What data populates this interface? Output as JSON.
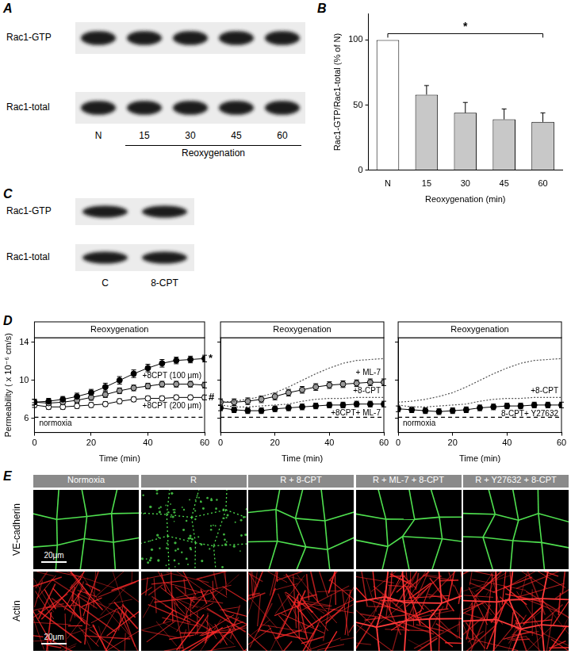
{
  "panels": {
    "A": {
      "letter": "A",
      "rows": [
        "Rac1-GTP",
        "Rac1-total"
      ],
      "lanes": [
        "N",
        "15",
        "30",
        "45",
        "60"
      ],
      "lane_group": "Reoxygenation"
    },
    "B": {
      "letter": "B"
    },
    "C": {
      "letter": "C",
      "rows": [
        "Rac1-GTP",
        "Rac1-total"
      ],
      "lanes": [
        "C",
        "8-CPT"
      ]
    },
    "D": {
      "letter": "D"
    },
    "E": {
      "letter": "E",
      "columns": [
        "Normoxia",
        "R",
        "R + 8-CPT",
        "R + ML-7 + 8-CPT",
        "R + Y27632 + 8-CPT"
      ],
      "rows": [
        "VE-cadherin",
        "Actin"
      ],
      "scale_bar": "20μm"
    }
  },
  "chart_data": [
    {
      "type": "bar",
      "categories": [
        "N",
        "15",
        "30",
        "45",
        "60"
      ],
      "values": [
        100,
        58,
        44,
        39,
        37
      ],
      "errors": [
        0,
        7,
        8,
        8,
        7
      ],
      "colors": [
        "#ffffff",
        "#c8c8c8",
        "#c8c8c8",
        "#c8c8c8",
        "#c8c8c8"
      ],
      "ylabel": "Rac1-GTP/Rac1-total (% of N)",
      "xlabel": "Reoxygenation (min)",
      "ylim": [
        0,
        120
      ],
      "yticks": [
        0,
        50,
        100
      ],
      "grid": false,
      "annotations": [
        {
          "from": "N",
          "to": "60",
          "text": "*"
        }
      ]
    },
    {
      "type": "line",
      "title": "Reoxygenation",
      "ylabel": "Permeability ( x 10⁻⁶ cm/s)",
      "xlabel": "Time (min)",
      "x": [
        0,
        5,
        10,
        15,
        20,
        25,
        30,
        35,
        40,
        45,
        50,
        55,
        60
      ],
      "xlim": [
        0,
        60
      ],
      "xticks": [
        0,
        20,
        40,
        60
      ],
      "ylim": [
        4.5,
        14.5
      ],
      "yticks": [
        6,
        10,
        14
      ],
      "grid": false,
      "series": [
        {
          "name": "normoxia",
          "color": "#000000",
          "marker": "none",
          "line_style": "dashed",
          "values": [
            6.1,
            6.1,
            6.1,
            6.1,
            6.1,
            6.1,
            6.1,
            6.1,
            6.1,
            6.1,
            6.1,
            6.1,
            6.1
          ]
        },
        {
          "color": "#000000",
          "marker": "circle",
          "line_style": "solid",
          "annotation": "*",
          "values": [
            7.7,
            7.8,
            8.0,
            8.3,
            8.7,
            9.3,
            10.0,
            10.7,
            11.3,
            11.8,
            12.1,
            12.2,
            12.3
          ],
          "errors": [
            0.3,
            0.3,
            0.3,
            0.35,
            0.35,
            0.4,
            0.4,
            0.4,
            0.4,
            0.4,
            0.35,
            0.35,
            0.35
          ]
        },
        {
          "name": "+8CPT (100 μm)",
          "color": "#9a9a9a",
          "marker": "circle",
          "line_style": "solid",
          "values": [
            7.7,
            7.6,
            7.7,
            7.9,
            8.2,
            8.5,
            8.9,
            9.2,
            9.4,
            9.6,
            9.6,
            9.6,
            9.5
          ],
          "errors": [
            0.3,
            0.3,
            0.3,
            0.3,
            0.3,
            0.3,
            0.3,
            0.3,
            0.3,
            0.3,
            0.3,
            0.3,
            0.3
          ]
        },
        {
          "name": "+8CPT (200 μm)",
          "color": "#ffffff",
          "marker": "circle",
          "line_style": "solid",
          "annotation": "#",
          "values": [
            7.4,
            7.2,
            7.2,
            7.3,
            7.4,
            7.5,
            7.8,
            8.0,
            8.1,
            8.1,
            8.2,
            8.2,
            8.2
          ],
          "errors": [
            0.25,
            0.25,
            0.25,
            0.25,
            0.25,
            0.25,
            0.25,
            0.25,
            0.25,
            0.25,
            0.25,
            0.25,
            0.25
          ]
        }
      ]
    },
    {
      "type": "line",
      "title": "Reoxygenation",
      "xlabel": "Time (min)",
      "x": [
        0,
        5,
        10,
        15,
        20,
        25,
        30,
        35,
        40,
        45,
        50,
        55,
        60
      ],
      "xlim": [
        0,
        60
      ],
      "xticks": [
        0,
        20,
        40,
        60
      ],
      "ylim": [
        4.5,
        14.5
      ],
      "yticks": [
        6,
        10,
        14
      ],
      "grid": false,
      "tick_labels": "x",
      "series": [
        {
          "color": "#000000",
          "marker": "none",
          "line_style": "dashed",
          "values": [
            6.1,
            6.1,
            6.1,
            6.1,
            6.1,
            6.1,
            6.1,
            6.1,
            6.1,
            6.1,
            6.1,
            6.1,
            6.1
          ]
        },
        {
          "color": "#555555",
          "marker": "none",
          "line_style": "dotted",
          "values": [
            7.7,
            7.8,
            8.0,
            8.3,
            8.7,
            9.3,
            10.0,
            10.7,
            11.3,
            11.8,
            12.1,
            12.2,
            12.3
          ]
        },
        {
          "name": "+8-CPT",
          "color": "#555555",
          "marker": "none",
          "line_style": "dotted",
          "values": [
            7.4,
            7.2,
            7.2,
            7.3,
            7.4,
            7.5,
            7.8,
            8.0,
            8.1,
            8.1,
            8.2,
            8.2,
            8.2
          ]
        },
        {
          "name": "+ ML-7",
          "color": "#9a9a9a",
          "marker": "circle",
          "line_style": "solid",
          "values": [
            7.7,
            7.7,
            7.8,
            8.0,
            8.3,
            8.7,
            9.0,
            9.3,
            9.5,
            9.6,
            9.7,
            9.8,
            9.8
          ],
          "errors": [
            0.35,
            0.35,
            0.35,
            0.35,
            0.35,
            0.35,
            0.35,
            0.35,
            0.35,
            0.35,
            0.35,
            0.35,
            0.35
          ]
        },
        {
          "name": "+8CPT+ ML-7",
          "color": "#000000",
          "marker": "circle",
          "line_style": "solid",
          "values": [
            7.1,
            6.9,
            6.8,
            6.8,
            7.0,
            7.1,
            7.2,
            7.3,
            7.4,
            7.4,
            7.5,
            7.5,
            7.5
          ],
          "errors": [
            0.3,
            0.3,
            0.3,
            0.3,
            0.3,
            0.3,
            0.3,
            0.3,
            0.3,
            0.3,
            0.3,
            0.3,
            0.3
          ]
        }
      ]
    },
    {
      "type": "line",
      "title": "Reoxygenation",
      "xlabel": "Time (min)",
      "x": [
        0,
        5,
        10,
        15,
        20,
        25,
        30,
        35,
        40,
        45,
        50,
        55,
        60
      ],
      "xlim": [
        0,
        60
      ],
      "xticks": [
        0,
        20,
        40,
        60
      ],
      "ylim": [
        4.5,
        14.5
      ],
      "yticks": [
        6,
        10,
        14
      ],
      "grid": false,
      "tick_labels": "x",
      "series": [
        {
          "name": "normoxia",
          "color": "#000000",
          "marker": "none",
          "line_style": "dashed",
          "values": [
            6.1,
            6.1,
            6.1,
            6.1,
            6.1,
            6.1,
            6.1,
            6.1,
            6.1,
            6.1,
            6.1,
            6.1,
            6.1
          ]
        },
        {
          "color": "#555555",
          "marker": "none",
          "line_style": "dotted",
          "values": [
            7.7,
            7.8,
            8.0,
            8.3,
            8.7,
            9.3,
            10.0,
            10.7,
            11.3,
            11.8,
            12.1,
            12.2,
            12.3
          ]
        },
        {
          "name": "+8-CPT",
          "color": "#555555",
          "marker": "none",
          "line_style": "dotted",
          "values": [
            7.4,
            7.2,
            7.2,
            7.3,
            7.4,
            7.5,
            7.8,
            8.0,
            8.1,
            8.1,
            8.2,
            8.2,
            8.2
          ]
        },
        {
          "name": "8-CPT+ Y27632",
          "color": "#000000",
          "marker": "circle",
          "line_style": "solid",
          "values": [
            7.0,
            6.9,
            6.8,
            6.7,
            6.8,
            6.9,
            7.1,
            7.2,
            7.3,
            7.3,
            7.4,
            7.4,
            7.4
          ],
          "errors": [
            0.3,
            0.3,
            0.3,
            0.3,
            0.3,
            0.3,
            0.3,
            0.3,
            0.3,
            0.3,
            0.3,
            0.3,
            0.3
          ]
        }
      ]
    }
  ]
}
